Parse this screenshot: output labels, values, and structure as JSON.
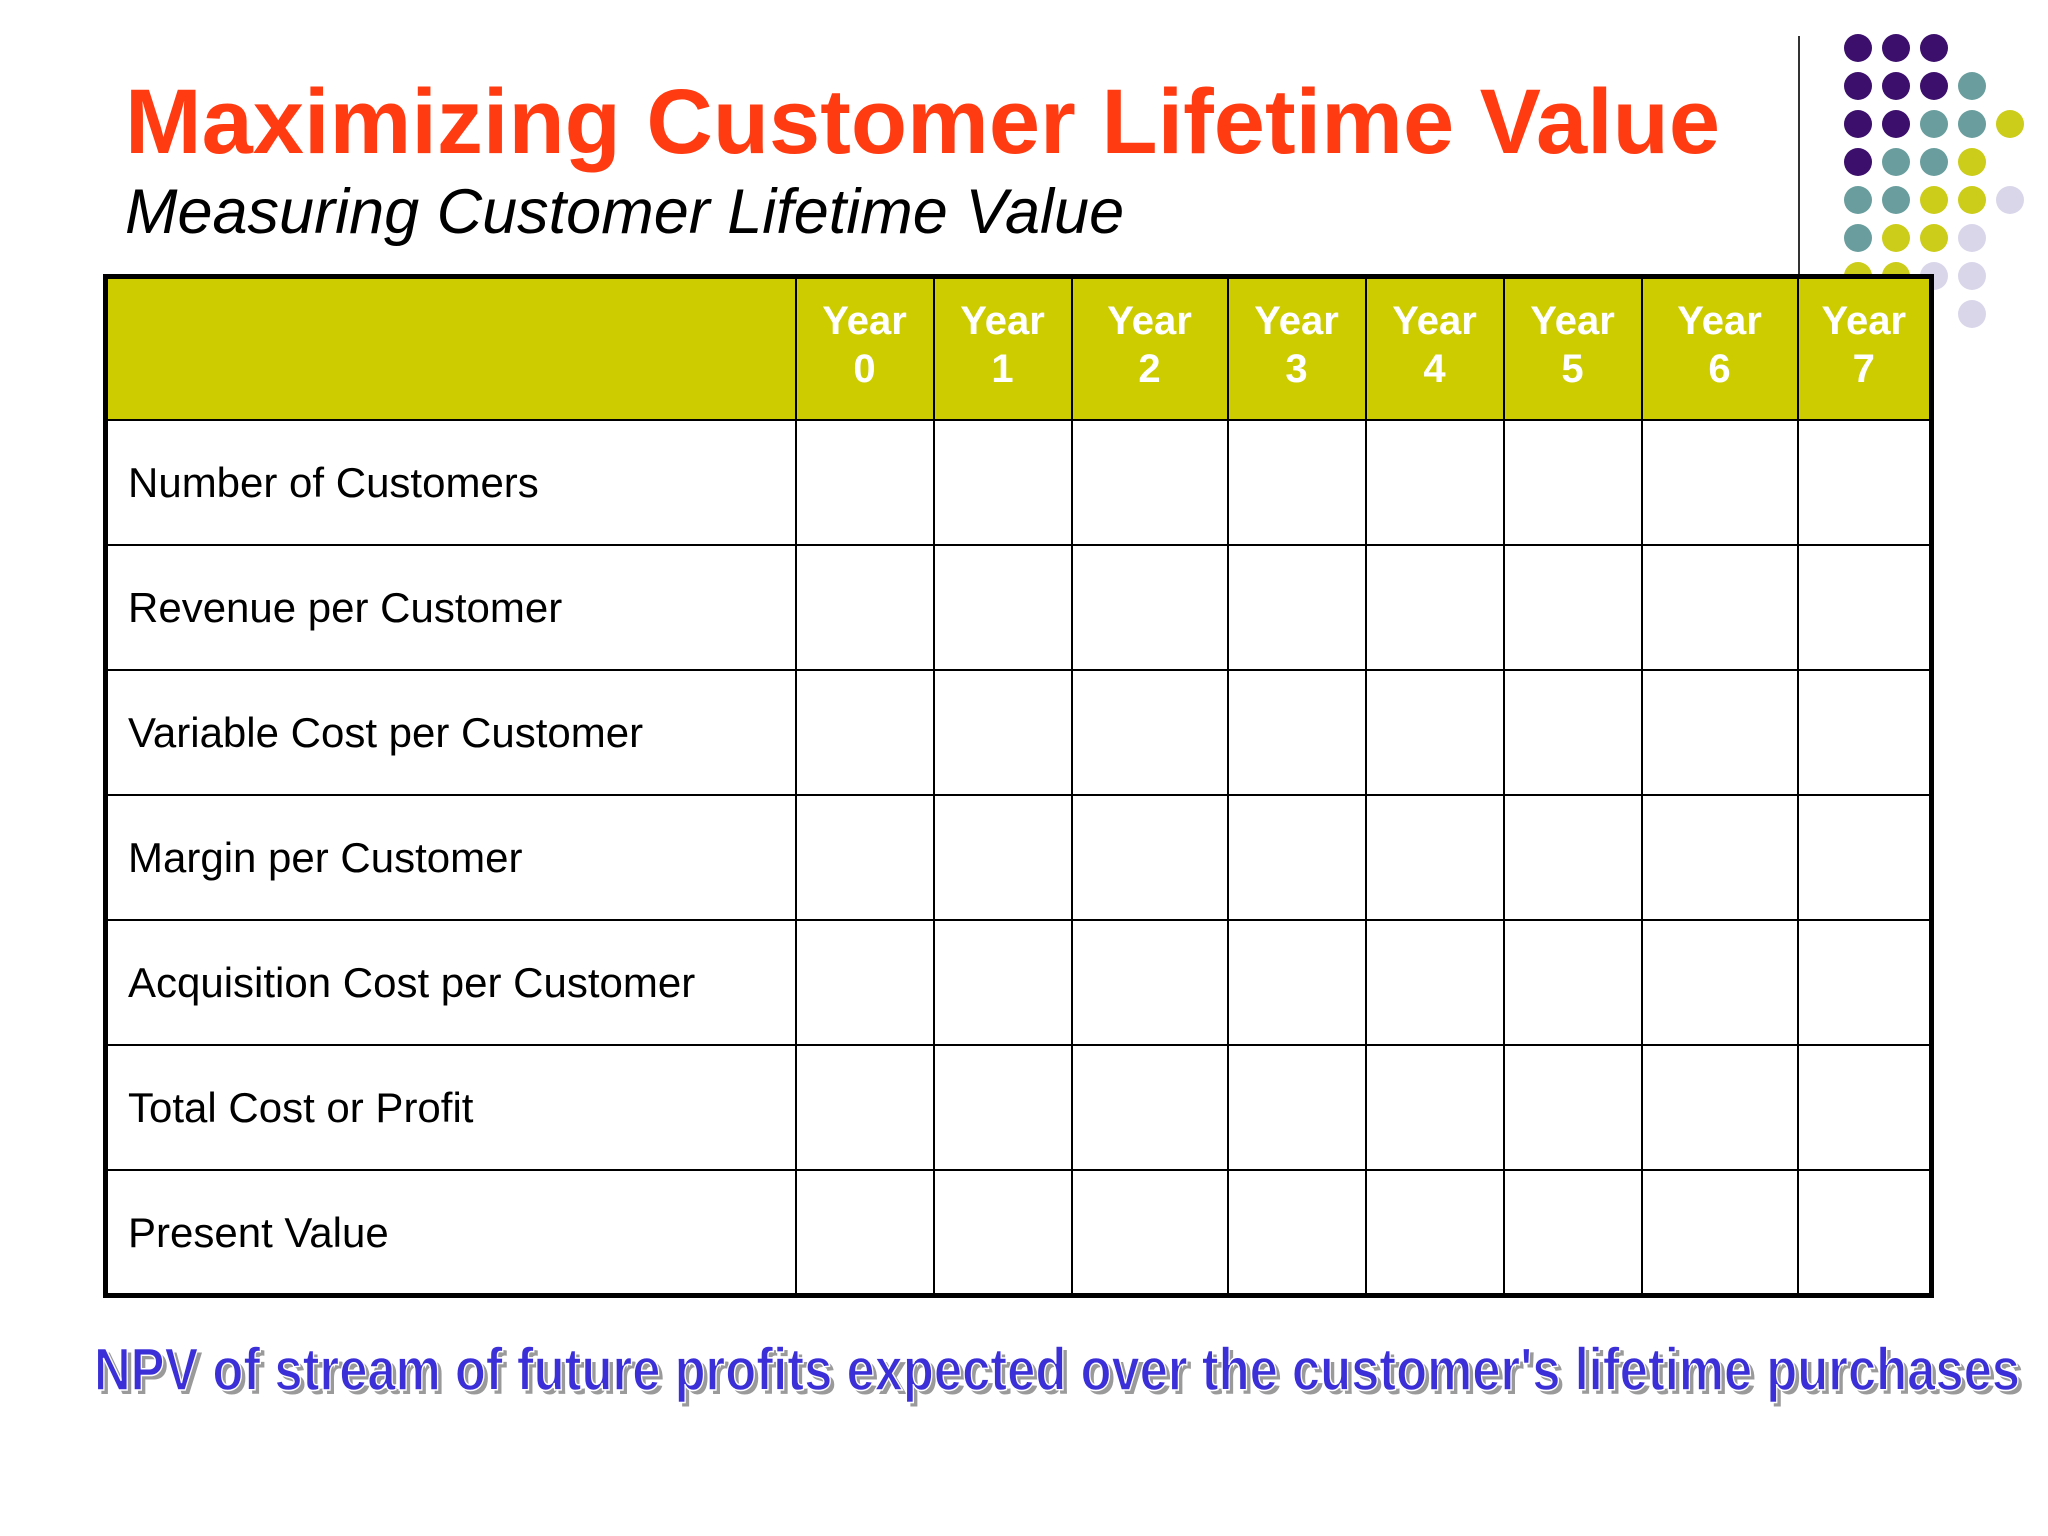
{
  "colors": {
    "title": "#ff3b12",
    "header_bg": "#cccc00",
    "footer_text": "#3b2fd8",
    "dot_purple": "#3b0f6b",
    "dot_teal": "#6a9e9e",
    "dot_olive": "#cccc1a",
    "dot_lavender": "#d9d6ea"
  },
  "slide": {
    "title": "Maximizing Customer Lifetime Value",
    "subtitle": "Measuring Customer Lifetime Value",
    "footer": "NPV of stream of future profits expected over the customer's lifetime purchases"
  },
  "table": {
    "columns": [
      {
        "top": "Year",
        "bottom": "0"
      },
      {
        "top": "Year",
        "bottom": "1"
      },
      {
        "top": "Year",
        "bottom": "2"
      },
      {
        "top": "Year",
        "bottom": "3"
      },
      {
        "top": "Year",
        "bottom": "4"
      },
      {
        "top": "Year",
        "bottom": "5"
      },
      {
        "top": "Year",
        "bottom": "6"
      },
      {
        "top": "Year",
        "bottom": "7"
      }
    ],
    "rows": [
      "Number of Customers",
      "Revenue per Customer",
      "Variable Cost per Customer",
      "Margin per Customer",
      "Acquisition Cost per Customer",
      "Total Cost or Profit",
      "Present Value"
    ]
  },
  "decoration": {
    "dot_pattern": [
      [
        "purple",
        "purple",
        "purple"
      ],
      [
        "purple",
        "purple",
        "purple",
        "teal"
      ],
      [
        "purple",
        "purple",
        "teal",
        "teal",
        "olive"
      ],
      [
        "purple",
        "teal",
        "teal",
        "olive"
      ],
      [
        "teal",
        "teal",
        "olive",
        "olive",
        "lavender"
      ],
      [
        "teal",
        "olive",
        "olive",
        "lavender"
      ],
      [
        "olive",
        "olive",
        "lavender",
        "lavender"
      ],
      [
        "lavender"
      ]
    ]
  }
}
